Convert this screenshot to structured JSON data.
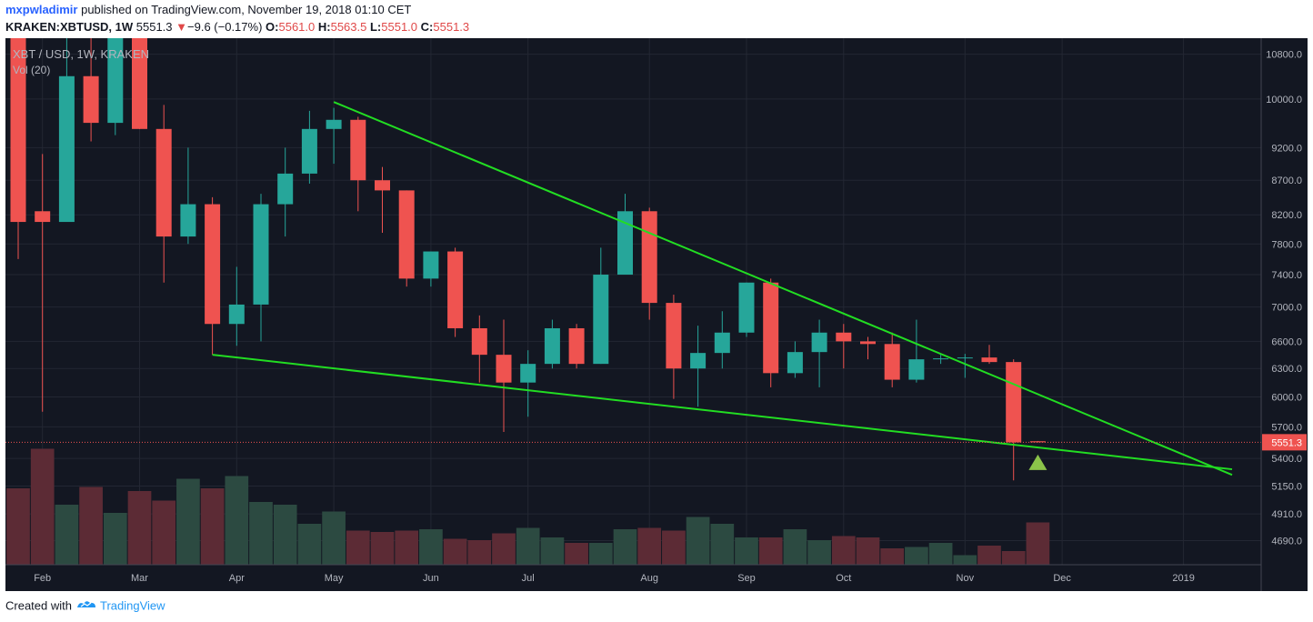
{
  "header": {
    "author": "mxpwladimir",
    "published_text": "published on TradingView.com, November 19, 2018 01:10 CET"
  },
  "ohlc": {
    "symbol": "KRAKEN:XBTUSD, 1W",
    "last": "5551.3",
    "change": "−9.6 (−0.17%)",
    "open_label": "O:",
    "open": "5561.0",
    "high_label": "H:",
    "high": "5563.5",
    "low_label": "L:",
    "low": "5551.0",
    "close_label": "C:",
    "close": "5551.3"
  },
  "footer": {
    "created_with": "Created with",
    "brand": "TradingView"
  },
  "chart_data": {
    "type": "candlestick",
    "title": "XBT / USD, 1W, KRAKEN",
    "subtitle": "Vol (20)",
    "scale": "log",
    "y_range": [
      4500,
      11100
    ],
    "y_ticks": [
      10800,
      10000,
      9200,
      8700,
      8200,
      7800,
      7400,
      7000,
      6600,
      6300,
      6000,
      5700,
      5400,
      5150,
      4910,
      4690
    ],
    "y_tick_labels": [
      "10800.0",
      "10000.0",
      "9200.0",
      "8700.0",
      "8200.0",
      "7800.0",
      "7400.0",
      "7000.0",
      "6600.0",
      "6300.0",
      "6000.0",
      "5700.0",
      "5400.0",
      "5150.0",
      "4910.0",
      "4690.0"
    ],
    "x_labels": [
      "Feb",
      "Mar",
      "Apr",
      "May",
      "Jun",
      "Jul",
      "Aug",
      "Sep",
      "Oct",
      "Nov",
      "Dec",
      "2019"
    ],
    "x_label_weeks": [
      1,
      5,
      9,
      13,
      17,
      21,
      26,
      30,
      34,
      39,
      43,
      48
    ],
    "last_price_label": "5551.3",
    "last_price": 5551.3,
    "colors": {
      "up": "#26a69a",
      "down": "#ef5350",
      "vol_up": "#2c4a41",
      "vol_down": "#5c2b35",
      "background": "#131722",
      "grid": "#232733",
      "trendline": "#22dd22",
      "signal": "#8bc34a",
      "axis_text": "#b2b5be"
    },
    "candles": [
      {
        "o": 11400,
        "h": 11600,
        "l": 7600,
        "c": 8100
      },
      {
        "o": 8250,
        "h": 9100,
        "l": 5850,
        "c": 8100
      },
      {
        "o": 8100,
        "h": 11400,
        "l": 8100,
        "c": 10400
      },
      {
        "o": 10400,
        "h": 11400,
        "l": 9300,
        "c": 9600
      },
      {
        "o": 9600,
        "h": 11400,
        "l": 9400,
        "c": 11400
      },
      {
        "o": 11400,
        "h": 11400,
        "l": 9500,
        "c": 9500
      },
      {
        "o": 9500,
        "h": 9900,
        "l": 7300,
        "c": 7900
      },
      {
        "o": 7900,
        "h": 9200,
        "l": 7800,
        "c": 8350
      },
      {
        "o": 8350,
        "h": 8450,
        "l": 6450,
        "c": 6800
      },
      {
        "o": 6800,
        "h": 7500,
        "l": 6550,
        "c": 7030
      },
      {
        "o": 7030,
        "h": 8500,
        "l": 6600,
        "c": 8350
      },
      {
        "o": 8350,
        "h": 9200,
        "l": 7900,
        "c": 8800
      },
      {
        "o": 8800,
        "h": 9800,
        "l": 8650,
        "c": 9500
      },
      {
        "o": 9500,
        "h": 9850,
        "l": 8950,
        "c": 9650
      },
      {
        "o": 9650,
        "h": 9700,
        "l": 8250,
        "c": 8700
      },
      {
        "o": 8700,
        "h": 8900,
        "l": 7950,
        "c": 8550
      },
      {
        "o": 8550,
        "h": 8550,
        "l": 7250,
        "c": 7350
      },
      {
        "o": 7350,
        "h": 7700,
        "l": 7250,
        "c": 7700
      },
      {
        "o": 7700,
        "h": 7750,
        "l": 6650,
        "c": 6750
      },
      {
        "o": 6750,
        "h": 6900,
        "l": 6150,
        "c": 6450
      },
      {
        "o": 6450,
        "h": 6850,
        "l": 5650,
        "c": 6150
      },
      {
        "o": 6150,
        "h": 6500,
        "l": 5800,
        "c": 6350
      },
      {
        "o": 6350,
        "h": 6850,
        "l": 6300,
        "c": 6750
      },
      {
        "o": 6750,
        "h": 6800,
        "l": 6300,
        "c": 6350
      },
      {
        "o": 6350,
        "h": 7750,
        "l": 6350,
        "c": 7400
      },
      {
        "o": 7400,
        "h": 8500,
        "l": 7400,
        "c": 8250
      },
      {
        "o": 8250,
        "h": 8300,
        "l": 6850,
        "c": 7050
      },
      {
        "o": 7050,
        "h": 7150,
        "l": 5980,
        "c": 6300
      },
      {
        "o": 6300,
        "h": 6780,
        "l": 5900,
        "c": 6470
      },
      {
        "o": 6470,
        "h": 6950,
        "l": 6300,
        "c": 6700
      },
      {
        "o": 6700,
        "h": 7300,
        "l": 6650,
        "c": 7300
      },
      {
        "o": 7300,
        "h": 7350,
        "l": 6100,
        "c": 6250
      },
      {
        "o": 6250,
        "h": 6600,
        "l": 6200,
        "c": 6480
      },
      {
        "o": 6480,
        "h": 6850,
        "l": 6100,
        "c": 6700
      },
      {
        "o": 6700,
        "h": 6800,
        "l": 6300,
        "c": 6600
      },
      {
        "o": 6600,
        "h": 6650,
        "l": 6400,
        "c": 6570
      },
      {
        "o": 6570,
        "h": 6700,
        "l": 6100,
        "c": 6180
      },
      {
        "o": 6180,
        "h": 6850,
        "l": 6150,
        "c": 6400
      },
      {
        "o": 6400,
        "h": 6450,
        "l": 6350,
        "c": 6410
      },
      {
        "o": 6410,
        "h": 6460,
        "l": 6200,
        "c": 6420
      },
      {
        "o": 6420,
        "h": 6560,
        "l": 6350,
        "c": 6370
      },
      {
        "o": 6370,
        "h": 6400,
        "l": 5200,
        "c": 5550
      },
      {
        "o": 5561.0,
        "h": 5563.5,
        "l": 5551.0,
        "c": 5551.3
      }
    ],
    "volumes": [
      0.56,
      0.85,
      0.44,
      0.57,
      0.38,
      0.54,
      0.47,
      0.63,
      0.56,
      0.65,
      0.46,
      0.44,
      0.3,
      0.39,
      0.25,
      0.24,
      0.25,
      0.26,
      0.19,
      0.18,
      0.23,
      0.27,
      0.2,
      0.16,
      0.16,
      0.26,
      0.27,
      0.25,
      0.35,
      0.3,
      0.2,
      0.2,
      0.26,
      0.18,
      0.21,
      0.2,
      0.12,
      0.13,
      0.16,
      0.07,
      0.14,
      0.1,
      0.31
    ],
    "trendlines": [
      {
        "name": "upper-trendline",
        "from": {
          "week": 13,
          "price": 9950
        },
        "to": {
          "week": 50,
          "price": 5250
        }
      },
      {
        "name": "lower-trendline",
        "from": {
          "week": 8,
          "price": 6450
        },
        "to": {
          "week": 50,
          "price": 5300
        }
      }
    ],
    "signal": {
      "name": "buy-signal",
      "week": 42,
      "price": 5360
    }
  }
}
